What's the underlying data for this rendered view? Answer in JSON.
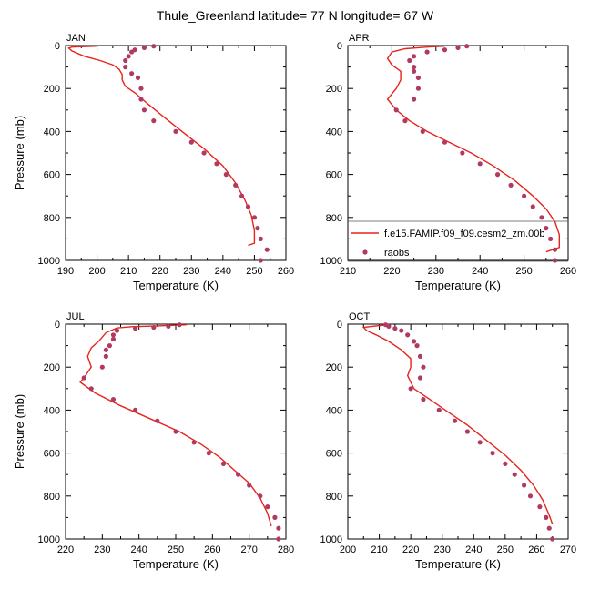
{
  "title": "Thule_Greenland  latitude= 77 N longitude= 67 W",
  "colors": {
    "model": "#e8231c",
    "obs": "#b03a62",
    "axis": "#000000"
  },
  "legend": {
    "panel": 1,
    "entries": [
      {
        "label": "f.e15.FAMIP.f09_f09.cesm2_zm.00b",
        "type": "line"
      },
      {
        "label": "raobs",
        "type": "marker"
      }
    ]
  },
  "chart_data": [
    {
      "type": "line",
      "label": "JAN",
      "xlabel": "Temperature (K)",
      "ylabel": "Pressure (mb)",
      "xlim": [
        190,
        260
      ],
      "ylim": [
        0,
        1000
      ],
      "y_inverted": true,
      "xticks": [
        190,
        200,
        210,
        220,
        230,
        240,
        250,
        260
      ],
      "yticks": [
        0,
        200,
        400,
        600,
        800,
        1000
      ],
      "series": [
        {
          "name": "f.e15.FAMIP.f09_f09.cesm2_zm.00b",
          "kind": "line",
          "points": [
            [
              200,
              3
            ],
            [
              192,
              7
            ],
            [
              191,
              12
            ],
            [
              192,
              25
            ],
            [
              196,
              50
            ],
            [
              201,
              70
            ],
            [
              205,
              90
            ],
            [
              207,
              110
            ],
            [
              208,
              135
            ],
            [
              208,
              160
            ],
            [
              209,
              190
            ],
            [
              212,
              220
            ],
            [
              216,
              270
            ],
            [
              221,
              330
            ],
            [
              227,
              400
            ],
            [
              234,
              480
            ],
            [
              240,
              560
            ],
            [
              244,
              640
            ],
            [
              247,
              720
            ],
            [
              249,
              790
            ],
            [
              250,
              860
            ],
            [
              250,
              920
            ],
            [
              248,
              930
            ]
          ]
        },
        {
          "name": "raobs",
          "kind": "scatter",
          "points": [
            [
              218,
              3
            ],
            [
              215,
              10
            ],
            [
              212,
              20
            ],
            [
              211,
              30
            ],
            [
              210,
              50
            ],
            [
              209,
              70
            ],
            [
              209,
              100
            ],
            [
              211,
              130
            ],
            [
              213,
              150
            ],
            [
              214,
              200
            ],
            [
              214,
              250
            ],
            [
              215,
              300
            ],
            [
              218,
              350
            ],
            [
              225,
              400
            ],
            [
              230,
              450
            ],
            [
              234,
              500
            ],
            [
              238,
              550
            ],
            [
              241,
              600
            ],
            [
              244,
              650
            ],
            [
              246,
              700
            ],
            [
              248,
              750
            ],
            [
              250,
              800
            ],
            [
              251,
              850
            ],
            [
              252,
              900
            ],
            [
              254,
              950
            ],
            [
              252,
              1000
            ]
          ]
        }
      ]
    },
    {
      "type": "line",
      "label": "APR",
      "xlabel": "Temperature (K)",
      "ylabel": "Pressure (mb)",
      "xlim": [
        210,
        260
      ],
      "ylim": [
        0,
        1000
      ],
      "y_inverted": true,
      "xticks": [
        210,
        220,
        230,
        240,
        250,
        260
      ],
      "yticks": [
        0,
        200,
        400,
        600,
        800,
        1000
      ],
      "series": [
        {
          "name": "f.e15.FAMIP.f09_f09.cesm2_zm.00b",
          "kind": "line",
          "points": [
            [
              232,
              3
            ],
            [
              228,
              7
            ],
            [
              223,
              15
            ],
            [
              220,
              30
            ],
            [
              219,
              60
            ],
            [
              220,
              90
            ],
            [
              222,
              120
            ],
            [
              222,
              160
            ],
            [
              221,
              200
            ],
            [
              219,
              250
            ],
            [
              221,
              300
            ],
            [
              224,
              350
            ],
            [
              228,
              400
            ],
            [
              233,
              450
            ],
            [
              238,
              500
            ],
            [
              243,
              560
            ],
            [
              248,
              630
            ],
            [
              252,
              700
            ],
            [
              255,
              760
            ],
            [
              257,
              820
            ],
            [
              258,
              880
            ],
            [
              258,
              940
            ],
            [
              255,
              960
            ]
          ]
        },
        {
          "name": "raobs",
          "kind": "scatter",
          "points": [
            [
              237,
              3
            ],
            [
              235,
              10
            ],
            [
              232,
              20
            ],
            [
              228,
              30
            ],
            [
              225,
              50
            ],
            [
              224,
              70
            ],
            [
              225,
              100
            ],
            [
              225,
              120
            ],
            [
              226,
              150
            ],
            [
              226,
              200
            ],
            [
              225,
              250
            ],
            [
              221,
              300
            ],
            [
              223,
              350
            ],
            [
              227,
              400
            ],
            [
              232,
              450
            ],
            [
              236,
              500
            ],
            [
              240,
              550
            ],
            [
              244,
              600
            ],
            [
              247,
              650
            ],
            [
              250,
              700
            ],
            [
              252,
              750
            ],
            [
              254,
              800
            ],
            [
              255,
              850
            ],
            [
              256,
              900
            ],
            [
              257,
              950
            ],
            [
              257,
              1000
            ]
          ]
        }
      ]
    },
    {
      "type": "line",
      "label": "JUL",
      "xlabel": "Temperature (K)",
      "ylabel": "Pressure (mb)",
      "xlim": [
        220,
        280
      ],
      "ylim": [
        0,
        1000
      ],
      "y_inverted": true,
      "xticks": [
        220,
        230,
        240,
        250,
        260,
        270,
        280
      ],
      "yticks": [
        0,
        200,
        400,
        600,
        800,
        1000
      ],
      "series": [
        {
          "name": "f.e15.FAMIP.f09_f09.cesm2_zm.00b",
          "kind": "line",
          "points": [
            [
              253,
              3
            ],
            [
              245,
              8
            ],
            [
              238,
              12
            ],
            [
              234,
              18
            ],
            [
              231,
              40
            ],
            [
              229,
              80
            ],
            [
              227,
              110
            ],
            [
              226,
              150
            ],
            [
              227,
              200
            ],
            [
              225,
              250
            ],
            [
              224,
              270
            ],
            [
              228,
              320
            ],
            [
              235,
              380
            ],
            [
              243,
              440
            ],
            [
              251,
              500
            ],
            [
              257,
              560
            ],
            [
              262,
              620
            ],
            [
              266,
              680
            ],
            [
              270,
              740
            ],
            [
              273,
              810
            ],
            [
              275,
              880
            ],
            [
              276,
              940
            ]
          ]
        },
        {
          "name": "raobs",
          "kind": "scatter",
          "points": [
            [
              251,
              3
            ],
            [
              248,
              10
            ],
            [
              244,
              15
            ],
            [
              239,
              20
            ],
            [
              234,
              30
            ],
            [
              233,
              50
            ],
            [
              233,
              70
            ],
            [
              232,
              100
            ],
            [
              231,
              120
            ],
            [
              231,
              150
            ],
            [
              230,
              200
            ],
            [
              225,
              250
            ],
            [
              227,
              300
            ],
            [
              233,
              350
            ],
            [
              239,
              400
            ],
            [
              245,
              450
            ],
            [
              250,
              500
            ],
            [
              255,
              550
            ],
            [
              259,
              600
            ],
            [
              263,
              650
            ],
            [
              267,
              700
            ],
            [
              270,
              750
            ],
            [
              273,
              800
            ],
            [
              275,
              850
            ],
            [
              277,
              900
            ],
            [
              278,
              950
            ],
            [
              278,
              1000
            ]
          ]
        }
      ]
    },
    {
      "type": "line",
      "label": "OCT",
      "xlabel": "Temperature (K)",
      "ylabel": "Pressure (mb)",
      "xlim": [
        200,
        270
      ],
      "ylim": [
        0,
        1000
      ],
      "y_inverted": true,
      "xticks": [
        200,
        210,
        220,
        230,
        240,
        250,
        260,
        270
      ],
      "yticks": [
        0,
        200,
        400,
        600,
        800,
        1000
      ],
      "series": [
        {
          "name": "f.e15.FAMIP.f09_f09.cesm2_zm.00b",
          "kind": "line",
          "points": [
            [
              213,
              3
            ],
            [
              209,
              8
            ],
            [
              205,
              15
            ],
            [
              206,
              30
            ],
            [
              209,
              50
            ],
            [
              213,
              80
            ],
            [
              217,
              120
            ],
            [
              220,
              160
            ],
            [
              220,
              200
            ],
            [
              219,
              240
            ],
            [
              221,
              300
            ],
            [
              226,
              350
            ],
            [
              232,
              410
            ],
            [
              238,
              470
            ],
            [
              244,
              540
            ],
            [
              250,
              610
            ],
            [
              255,
              680
            ],
            [
              259,
              750
            ],
            [
              262,
              820
            ],
            [
              264,
              890
            ],
            [
              265,
              930
            ]
          ]
        },
        {
          "name": "raobs",
          "kind": "scatter",
          "points": [
            [
              212,
              3
            ],
            [
              213,
              10
            ],
            [
              215,
              20
            ],
            [
              217,
              30
            ],
            [
              219,
              50
            ],
            [
              221,
              80
            ],
            [
              222,
              100
            ],
            [
              223,
              150
            ],
            [
              224,
              200
            ],
            [
              223,
              250
            ],
            [
              220,
              300
            ],
            [
              224,
              350
            ],
            [
              229,
              400
            ],
            [
              234,
              450
            ],
            [
              238,
              500
            ],
            [
              242,
              550
            ],
            [
              246,
              600
            ],
            [
              250,
              650
            ],
            [
              253,
              700
            ],
            [
              256,
              750
            ],
            [
              258,
              800
            ],
            [
              261,
              850
            ],
            [
              263,
              900
            ],
            [
              264,
              950
            ],
            [
              265,
              1000
            ]
          ]
        }
      ]
    }
  ]
}
